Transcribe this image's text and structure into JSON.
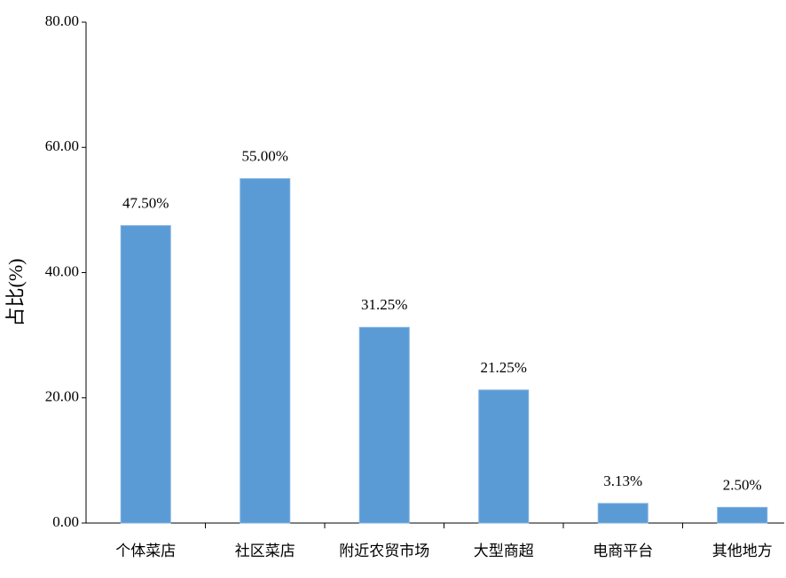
{
  "chart_data": {
    "type": "bar",
    "y_label": "占比(%)",
    "categories": [
      "个体菜店",
      "社区菜店",
      "附近农贸市场",
      "大型商超",
      "电商平台",
      "其他地方"
    ],
    "values": [
      47.5,
      55.0,
      31.25,
      21.25,
      3.13,
      2.5
    ],
    "value_labels": [
      "47.50%",
      "55.00%",
      "31.25%",
      "21.25%",
      "3.13%",
      "2.50%"
    ],
    "color": "#5b9bd5",
    "ylim": [
      0,
      80
    ],
    "yticks": [
      {
        "value": 0,
        "label": "0.00"
      },
      {
        "value": 20,
        "label": "20.00"
      },
      {
        "value": 40,
        "label": "40.00"
      },
      {
        "value": 60,
        "label": "60.00"
      },
      {
        "value": 80,
        "label": "80.00"
      }
    ],
    "grid": false
  }
}
